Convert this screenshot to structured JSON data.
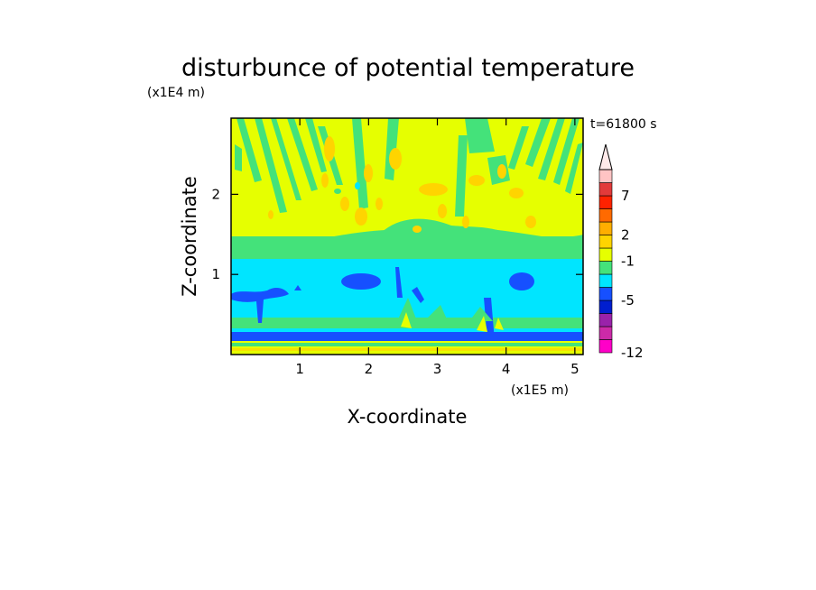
{
  "chart_data": {
    "type": "heatmap",
    "title": "disturbunce of potential temperature",
    "xlabel": "X-coordinate",
    "ylabel": "Z-coordinate",
    "x_unit": "(x1E5 m)",
    "y_unit": "(x1E4 m)",
    "time_label": "t=61800 s",
    "xlim": [
      0,
      5.12
    ],
    "ylim": [
      0,
      2.95
    ],
    "x_ticks": [
      1,
      2,
      3,
      4,
      5
    ],
    "x_tick_labels": [
      "1",
      "2",
      "3",
      "4",
      "5"
    ],
    "y_ticks": [
      1,
      2
    ],
    "y_tick_labels": [
      "1",
      "2"
    ],
    "colorbar": {
      "extend_top": true,
      "colors": [
        "#ff00c8",
        "#cc2aa8",
        "#9a22aa",
        "#001ecf",
        "#1650ff",
        "#00e5ff",
        "#44e27a",
        "#e6ff00",
        "#ffd400",
        "#ffae00",
        "#ff6a00",
        "#ff2200",
        "#e23a3a",
        "#ffc4c4"
      ],
      "extend_color": "#ffeaea",
      "tick_labels": [
        "-12",
        "-5",
        "-1",
        "2",
        "7"
      ],
      "tick_levels": [
        0,
        4,
        7,
        9,
        12
      ]
    },
    "regions": [
      {
        "z_range": [
          1.35,
          2.95
        ],
        "dominant": "yellow",
        "description_value": "0 to 1"
      },
      {
        "z_range": [
          0.55,
          1.3
        ],
        "dominant": "cyan",
        "description_value": "-2 to -1"
      },
      {
        "z_range": [
          0.15,
          0.55
        ],
        "dominant": "green/cyan mix"
      },
      {
        "z_range": [
          0.0,
          0.15
        ],
        "dominant": "blue/yellow surface layer"
      }
    ]
  }
}
